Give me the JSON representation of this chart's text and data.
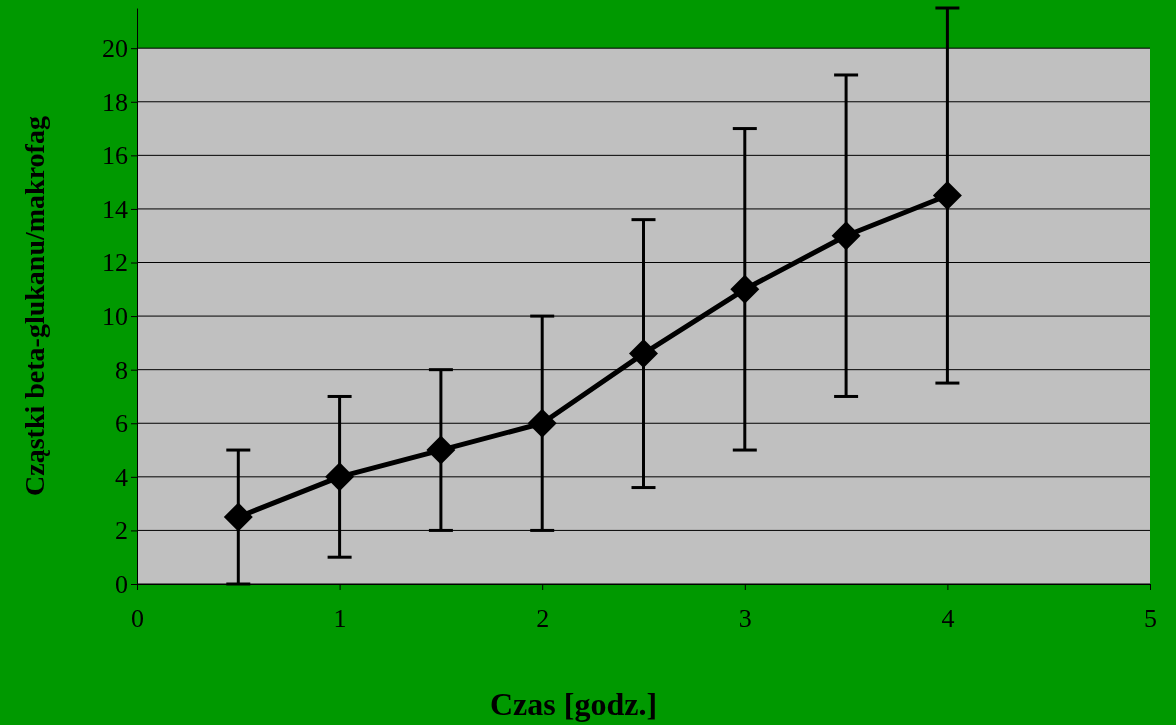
{
  "chart_data": {
    "type": "line",
    "xlabel": "Czas [godz.]",
    "ylabel": "Cząstki beta-glukanu/makrofag",
    "x": [
      0.5,
      1,
      1.5,
      2,
      2.5,
      3,
      3.5,
      4
    ],
    "series": [
      {
        "color": "#000000",
        "values": [
          2.5,
          4,
          5,
          6,
          8.6,
          11,
          13,
          14.5
        ],
        "errors": [
          2.5,
          3,
          3,
          4,
          5,
          6,
          6,
          7
        ]
      }
    ],
    "xlim": [
      0,
      5
    ],
    "xticks": [
      0,
      1,
      2,
      3,
      4,
      5
    ],
    "ylim": [
      0,
      21.5
    ],
    "yticks": [
      0,
      2,
      4,
      6,
      8,
      10,
      12,
      14,
      16,
      18,
      20
    ],
    "grid": "y",
    "marker": "diamond",
    "line_style": "solid"
  }
}
